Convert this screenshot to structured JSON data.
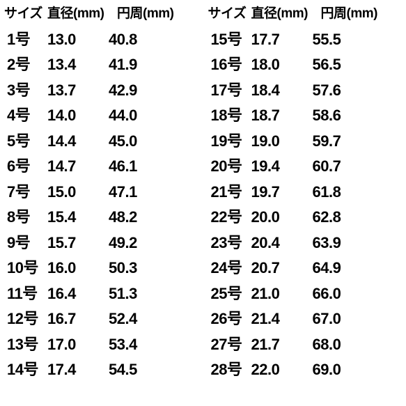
{
  "headers": {
    "size": "サイズ",
    "diameter": "直径(mm)",
    "circumference": "円周(mm)"
  },
  "left": [
    {
      "size": "1号",
      "d": "13.0",
      "c": "40.8"
    },
    {
      "size": "2号",
      "d": "13.4",
      "c": "41.9"
    },
    {
      "size": "3号",
      "d": "13.7",
      "c": "42.9"
    },
    {
      "size": "4号",
      "d": "14.0",
      "c": "44.0"
    },
    {
      "size": "5号",
      "d": "14.4",
      "c": "45.0"
    },
    {
      "size": "6号",
      "d": "14.7",
      "c": "46.1"
    },
    {
      "size": "7号",
      "d": "15.0",
      "c": "47.1"
    },
    {
      "size": "8号",
      "d": "15.4",
      "c": "48.2"
    },
    {
      "size": "9号",
      "d": "15.7",
      "c": "49.2"
    },
    {
      "size": "10号",
      "d": "16.0",
      "c": "50.3"
    },
    {
      "size": "11号",
      "d": "16.4",
      "c": "51.3"
    },
    {
      "size": "12号",
      "d": "16.7",
      "c": "52.4"
    },
    {
      "size": "13号",
      "d": "17.0",
      "c": "53.4"
    },
    {
      "size": "14号",
      "d": "17.4",
      "c": "54.5"
    }
  ],
  "right": [
    {
      "size": "15号",
      "d": "17.7",
      "c": "55.5"
    },
    {
      "size": "16号",
      "d": "18.0",
      "c": "56.5"
    },
    {
      "size": "17号",
      "d": "18.4",
      "c": "57.6"
    },
    {
      "size": "18号",
      "d": "18.7",
      "c": "58.6"
    },
    {
      "size": "19号",
      "d": "19.0",
      "c": "59.7"
    },
    {
      "size": "20号",
      "d": "19.4",
      "c": "60.7"
    },
    {
      "size": "21号",
      "d": "19.7",
      "c": "61.8"
    },
    {
      "size": "22号",
      "d": "20.0",
      "c": "62.8"
    },
    {
      "size": "23号",
      "d": "20.4",
      "c": "63.9"
    },
    {
      "size": "24号",
      "d": "20.7",
      "c": "64.9"
    },
    {
      "size": "25号",
      "d": "21.0",
      "c": "66.0"
    },
    {
      "size": "26号",
      "d": "21.4",
      "c": "67.0"
    },
    {
      "size": "27号",
      "d": "21.7",
      "c": "68.0"
    },
    {
      "size": "28号",
      "d": "22.0",
      "c": "69.0"
    }
  ]
}
